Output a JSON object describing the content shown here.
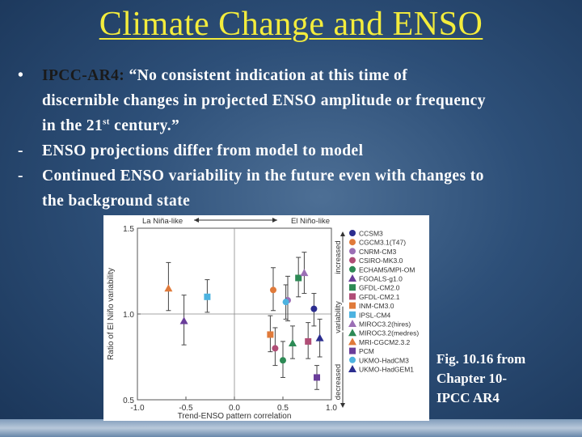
{
  "slide": {
    "title": "Climate Change and ENSO",
    "bullet_main_prefix": "IPCC-AR4:",
    "bullet_main_quote_1": "“No consistent indication at this time of",
    "bullet_main_quote_2": "discernible changes in projected ENSO amplitude or frequency",
    "bullet_main_quote_3a": "in the 21",
    "bullet_main_quote_3_sup": "st",
    "bullet_main_quote_3b": " century.”",
    "bullet_1_marker": "-",
    "bullet_1": "ENSO projections differ from model to model",
    "bullet_2_marker": "-",
    "bullet_2_line1": "Continued ENSO variability in the future even with changes to",
    "bullet_2_line2": "the background state",
    "caption_1": "Fig. 10.16 from",
    "caption_2": "Chapter 10-",
    "caption_3": "IPCC AR4"
  },
  "chart_data": {
    "type": "scatter",
    "xlabel": "Trend-ENSO pattern correlation",
    "ylabel": "Ratio of El Niño variability",
    "top_label_left": "La Niña-like",
    "top_label_right": "El Niño-like",
    "right_label_top": "increased",
    "right_label_mid": "variability",
    "right_label_bottom": "decreased",
    "xlim": [
      -1.0,
      1.0
    ],
    "ylim": [
      0.5,
      1.5
    ],
    "x_ticks": [
      "-1.0",
      "-0.5",
      "0.0",
      "0.5",
      "1.0"
    ],
    "y_ticks": [
      "0.5",
      "1.0",
      "1.5"
    ],
    "grid": false,
    "legend_position": "right",
    "series": [
      {
        "name": "CCSM3",
        "marker": "circle",
        "color": "#2b2d8f",
        "x": 0.82,
        "y": 1.03,
        "err": [
          0.93,
          1.12
        ]
      },
      {
        "name": "CGCM3.1(T47)",
        "marker": "circle",
        "color": "#e07a3a",
        "x": 0.4,
        "y": 1.14,
        "err": [
          1.02,
          1.27
        ]
      },
      {
        "name": "CNRM-CM3",
        "marker": "circle",
        "color": "#9b6fb5",
        "x": 0.55,
        "y": 1.08,
        "err": [
          0.96,
          1.22
        ]
      },
      {
        "name": "CSIRO-MK3.0",
        "marker": "circle",
        "color": "#b04d76",
        "x": 0.42,
        "y": 0.8,
        "err": [
          0.7,
          0.92
        ]
      },
      {
        "name": "ECHAM5/MPI-OM",
        "marker": "circle",
        "color": "#2d8a55",
        "x": 0.5,
        "y": 0.73,
        "err": [
          0.63,
          0.84
        ]
      },
      {
        "name": "FGOALS-g1.0",
        "marker": "triangle",
        "color": "#6a3d9a",
        "x": -0.52,
        "y": 0.96,
        "err": [
          0.82,
          1.11
        ]
      },
      {
        "name": "GFDL-CM2.0",
        "marker": "square",
        "color": "#2d8a55",
        "x": 0.66,
        "y": 1.21,
        "err": [
          1.1,
          1.33
        ]
      },
      {
        "name": "GFDL-CM2.1",
        "marker": "square",
        "color": "#b04d76",
        "x": 0.76,
        "y": 0.84,
        "err": [
          0.74,
          0.95
        ]
      },
      {
        "name": "INM-CM3.0",
        "marker": "square",
        "color": "#e07a3a",
        "x": 0.37,
        "y": 0.88,
        "err": [
          0.78,
          0.99
        ]
      },
      {
        "name": "IPSL-CM4",
        "marker": "square",
        "color": "#4db3e0",
        "x": -0.28,
        "y": 1.1,
        "err": [
          1.01,
          1.2
        ]
      },
      {
        "name": "MIROC3.2(hires)",
        "marker": "triangle",
        "color": "#9b6fb5",
        "x": 0.72,
        "y": 1.24,
        "err": [
          1.12,
          1.36
        ]
      },
      {
        "name": "MIROC3.2(medres)",
        "marker": "triangle",
        "color": "#2d8a55",
        "x": 0.6,
        "y": 0.83,
        "err": [
          0.74,
          0.93
        ]
      },
      {
        "name": "MRI-CGCM2.3.2",
        "marker": "triangle",
        "color": "#e07a3a",
        "x": -0.68,
        "y": 1.15,
        "err": [
          1.02,
          1.3
        ]
      },
      {
        "name": "PCM",
        "marker": "square",
        "color": "#6a3d9a",
        "x": 0.85,
        "y": 0.63,
        "err": [
          0.56,
          0.7
        ]
      },
      {
        "name": "UKMO-HadCM3",
        "marker": "circle",
        "color": "#4db3e0",
        "x": 0.53,
        "y": 1.07,
        "err": [
          0.97,
          1.17
        ]
      },
      {
        "name": "UKMO-HadGEM1",
        "marker": "triangle",
        "color": "#2b2d8f",
        "x": 0.88,
        "y": 0.86,
        "err": [
          0.75,
          0.97
        ]
      }
    ]
  }
}
